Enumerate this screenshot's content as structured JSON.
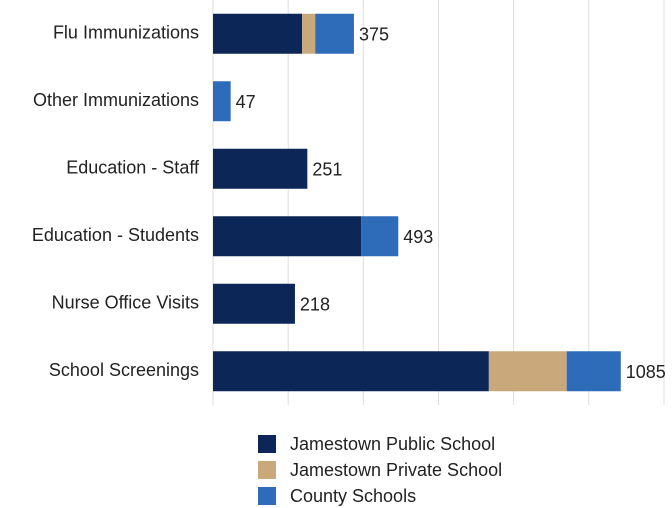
{
  "chart_data": {
    "type": "stacked-bar-horizontal",
    "categories": [
      "Flu Immunizations",
      "Other Immunizations",
      "Education - Staff",
      "Education - Students",
      "Nurse Office Visits",
      "School Screenings"
    ],
    "series": [
      {
        "name": "Jamestown Public School",
        "color": "#0c2657",
        "values": [
          237,
          0,
          251,
          394,
          218,
          734
        ]
      },
      {
        "name": "Jamestown Private School",
        "color": "#c9a97b",
        "values": [
          35,
          0,
          0,
          0,
          0,
          207
        ]
      },
      {
        "name": "County Schools",
        "color": "#2e6bb8",
        "values": [
          103,
          47,
          0,
          99,
          0,
          144
        ]
      }
    ],
    "totals": [
      375,
      47,
      251,
      493,
      218,
      1085
    ],
    "xlim": [
      0,
      1200
    ],
    "xticks": [
      0,
      200,
      400,
      600,
      800,
      1000,
      1200
    ],
    "grid": true
  }
}
